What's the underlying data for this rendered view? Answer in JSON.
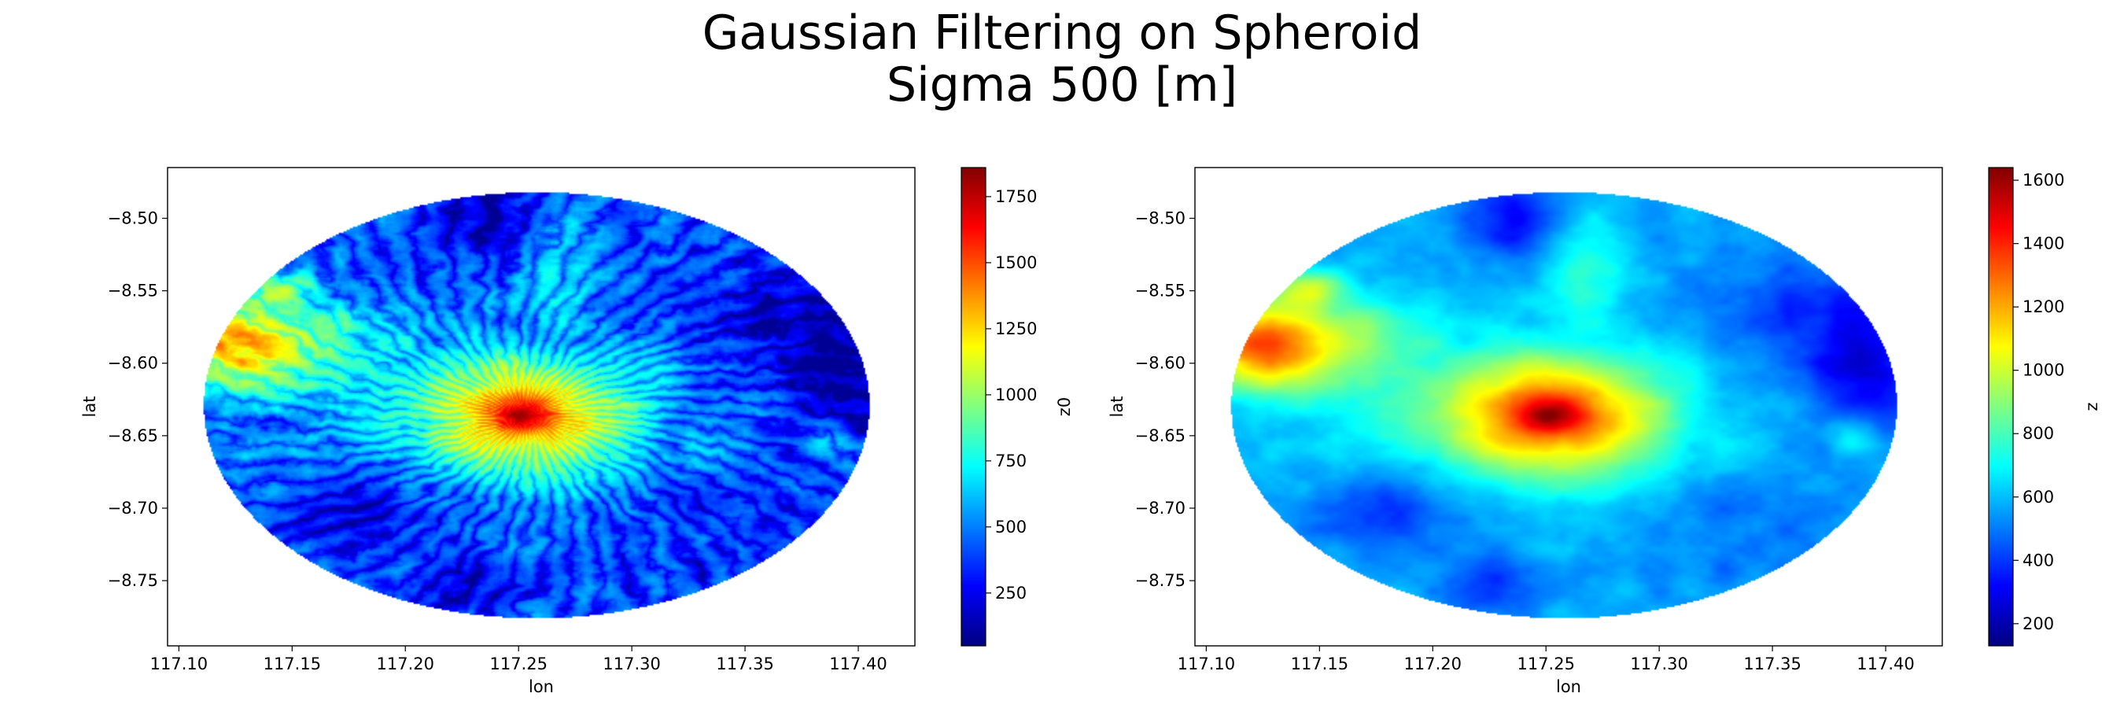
{
  "figure": {
    "title_line1": "Gaussian Filtering on Spheroid",
    "title_line2": "Sigma 500 [m]"
  },
  "colormap": "jet",
  "chart_data": [
    {
      "type": "heatmap",
      "xlabel": "lon",
      "ylabel": "lat",
      "xlim": [
        117.095,
        117.425
      ],
      "ylim": [
        -8.795,
        -8.465
      ],
      "xticks": [
        117.1,
        117.15,
        117.2,
        117.25,
        117.3,
        117.35,
        117.4
      ],
      "xtick_labels": [
        "117.10",
        "117.15",
        "117.20",
        "117.25",
        "117.30",
        "117.35",
        "117.40"
      ],
      "yticks": [
        -8.5,
        -8.55,
        -8.6,
        -8.65,
        -8.7,
        -8.75
      ],
      "ytick_labels": [
        "−8.50",
        "−8.55",
        "−8.60",
        "−8.65",
        "−8.70",
        "−8.75"
      ],
      "domain": {
        "shape": "ellipse",
        "center_lon": 117.258,
        "center_lat": -8.629,
        "radius_lon": 0.147,
        "radius_lat": 0.147
      },
      "colorbar": {
        "label": "z0",
        "min": 50,
        "max": 1860,
        "ticks": [
          250,
          500,
          750,
          1000,
          1250,
          1500,
          1750
        ],
        "tick_labels": [
          "250",
          "500",
          "750",
          "1000",
          "1250",
          "1500",
          "1750"
        ]
      },
      "features": [
        {
          "name": "central peak",
          "lon": 117.253,
          "lat": -8.636,
          "value": 1800
        },
        {
          "name": "western ridge",
          "lon": 117.125,
          "lat": -8.585,
          "value": 1700
        },
        {
          "name": "northwest spur",
          "lon": 117.143,
          "lat": -8.54,
          "value": 1450
        },
        {
          "name": "northern ridge",
          "lon": 117.268,
          "lat": -8.53,
          "value": 850
        },
        {
          "name": "northern valley",
          "lon": 117.235,
          "lat": -8.5,
          "value": 150
        },
        {
          "name": "eastern low",
          "lon": 117.39,
          "lat": -8.6,
          "value": 200
        },
        {
          "name": "southwest valley",
          "lon": 117.18,
          "lat": -8.7,
          "value": 200
        },
        {
          "name": "south valley",
          "lon": 117.225,
          "lat": -8.755,
          "value": 180
        },
        {
          "name": "eastern bump",
          "lon": 117.385,
          "lat": -8.648,
          "value": 650
        }
      ]
    },
    {
      "type": "heatmap",
      "xlabel": "lon",
      "ylabel": "lat",
      "xlim": [
        117.095,
        117.425
      ],
      "ylim": [
        -8.795,
        -8.465
      ],
      "xticks": [
        117.1,
        117.15,
        117.2,
        117.25,
        117.3,
        117.35,
        117.4
      ],
      "xtick_labels": [
        "117.10",
        "117.15",
        "117.20",
        "117.25",
        "117.30",
        "117.35",
        "117.40"
      ],
      "yticks": [
        -8.5,
        -8.55,
        -8.6,
        -8.65,
        -8.7,
        -8.75
      ],
      "ytick_labels": [
        "−8.50",
        "−8.55",
        "−8.60",
        "−8.65",
        "−8.70",
        "−8.75"
      ],
      "domain": {
        "shape": "ellipse",
        "center_lon": 117.258,
        "center_lat": -8.629,
        "radius_lon": 0.147,
        "radius_lat": 0.147
      },
      "colorbar": {
        "label": "z",
        "min": 130,
        "max": 1640,
        "ticks": [
          200,
          400,
          600,
          800,
          1000,
          1200,
          1400,
          1600
        ],
        "tick_labels": [
          "200",
          "400",
          "600",
          "800",
          "1000",
          "1200",
          "1400",
          "1600"
        ]
      },
      "features": [
        {
          "name": "central peak",
          "lon": 117.253,
          "lat": -8.636,
          "value": 1550
        },
        {
          "name": "western ridge",
          "lon": 117.125,
          "lat": -8.588,
          "value": 1620
        },
        {
          "name": "northwest spur",
          "lon": 117.145,
          "lat": -8.548,
          "value": 1300
        },
        {
          "name": "northern ridge",
          "lon": 117.268,
          "lat": -8.535,
          "value": 750
        },
        {
          "name": "northern valley",
          "lon": 117.237,
          "lat": -8.5,
          "value": 150
        },
        {
          "name": "eastern low",
          "lon": 117.39,
          "lat": -8.6,
          "value": 260
        },
        {
          "name": "southwest valley",
          "lon": 117.18,
          "lat": -8.705,
          "value": 250
        },
        {
          "name": "south valley",
          "lon": 117.225,
          "lat": -8.755,
          "value": 220
        },
        {
          "name": "eastern bump",
          "lon": 117.385,
          "lat": -8.648,
          "value": 650
        }
      ]
    }
  ]
}
